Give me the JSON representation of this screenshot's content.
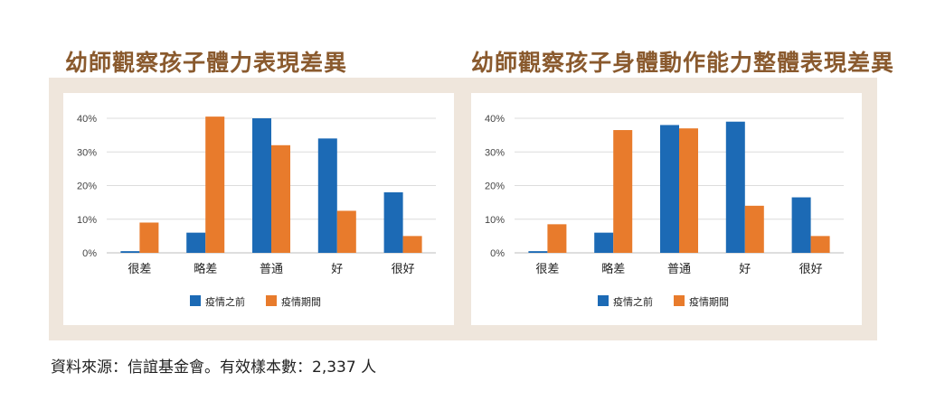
{
  "chart_data": [
    {
      "type": "bar",
      "title": "幼師觀察孩子體力表現差異",
      "categories": [
        "很差",
        "略差",
        "普通",
        "好",
        "很好"
      ],
      "series": [
        {
          "name": "疫情之前",
          "values": [
            0.5,
            6,
            40,
            34,
            18
          ],
          "color": "#1c6ab5"
        },
        {
          "name": "疫情期間",
          "values": [
            9,
            40.5,
            32,
            12.5,
            5
          ],
          "color": "#e87b2c"
        }
      ],
      "yticks": [
        "0%",
        "10%",
        "20%",
        "30%",
        "40%"
      ],
      "ylim": [
        0,
        40
      ],
      "grid": true,
      "legend": "bottom"
    },
    {
      "type": "bar",
      "title": "幼師觀察孩子身體動作能力整體表現差異",
      "categories": [
        "很差",
        "略差",
        "普通",
        "好",
        "很好"
      ],
      "series": [
        {
          "name": "疫情之前",
          "values": [
            0.5,
            6,
            38,
            39,
            16.5
          ],
          "color": "#1c6ab5"
        },
        {
          "name": "疫情期間",
          "values": [
            8.5,
            36.5,
            37,
            14,
            5
          ],
          "color": "#e87b2c"
        }
      ],
      "yticks": [
        "0%",
        "10%",
        "20%",
        "30%",
        "40%"
      ],
      "ylim": [
        0,
        40
      ],
      "grid": true,
      "legend": "bottom"
    }
  ],
  "footer_note": "資料來源：信誼基金會。有效樣本數：2,337 人"
}
